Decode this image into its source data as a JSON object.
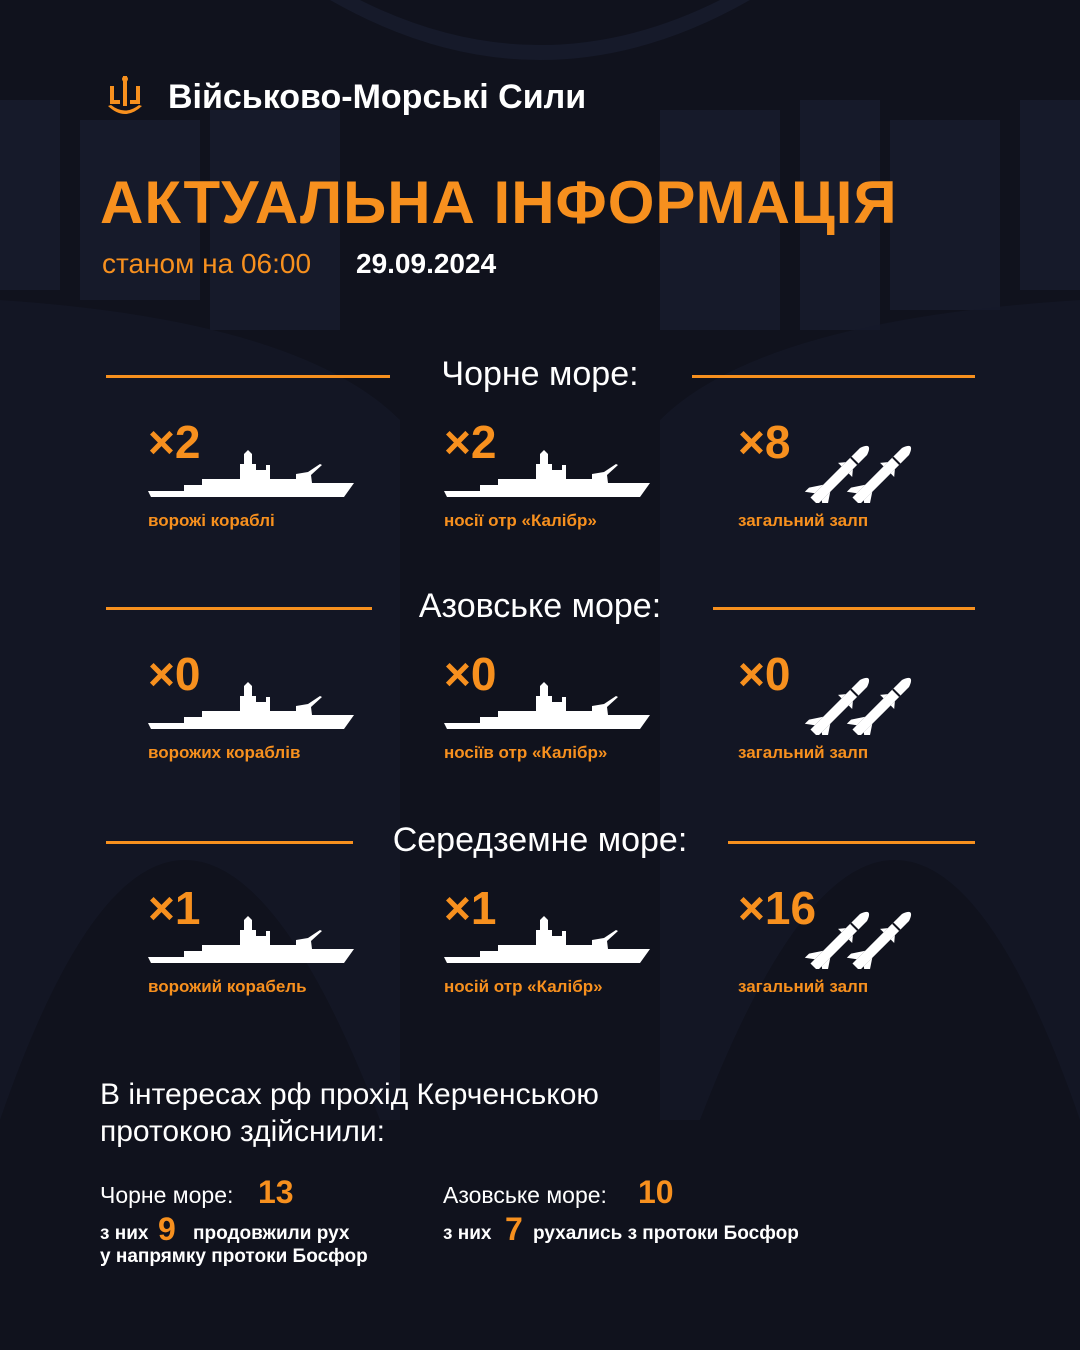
{
  "header": {
    "brand": "Військово-Морські Сили",
    "title": "АКТУАЛЬНА ІНФОРМАЦІЯ",
    "as_of_label": "станом на 06:00",
    "date": "29.09.2024"
  },
  "colors": {
    "accent": "#f7901e",
    "background": "#10121d"
  },
  "sections": [
    {
      "title": "Чорне море:",
      "items": [
        {
          "count": "×2",
          "label": "ворожі кораблі",
          "icon": "ship-icon"
        },
        {
          "count": "×2",
          "label": "носії отр «Калібр»",
          "icon": "ship-icon"
        },
        {
          "count": "×8",
          "label": "загальний залп",
          "icon": "missiles-icon"
        }
      ]
    },
    {
      "title": "Азовське море:",
      "items": [
        {
          "count": "×0",
          "label": "ворожих кораблів",
          "icon": "ship-icon"
        },
        {
          "count": "×0",
          "label": "носіїв отр «Калібр»",
          "icon": "ship-icon"
        },
        {
          "count": "×0",
          "label": "загальний залп",
          "icon": "missiles-icon"
        }
      ]
    },
    {
      "title": "Середземне море:",
      "items": [
        {
          "count": "×1",
          "label": "ворожий корабель",
          "icon": "ship-icon"
        },
        {
          "count": "×1",
          "label": "носій отр «Калібр»",
          "icon": "ship-icon"
        },
        {
          "count": "×16",
          "label": "загальний залп",
          "icon": "missiles-icon"
        }
      ]
    }
  ],
  "kerch": {
    "line1": "В інтересах рф прохід Керченською",
    "line2": "протокою здійснили:",
    "black": {
      "label": "Чорне море:",
      "value": "13",
      "pre": "з них",
      "num": "9",
      "post": "продовжили рух",
      "post2": "у напрямку протоки Босфор"
    },
    "azov": {
      "label": "Азовське море:",
      "value": "10",
      "pre": "з них",
      "num": "7",
      "post": "рухались з протоки Босфор"
    }
  }
}
